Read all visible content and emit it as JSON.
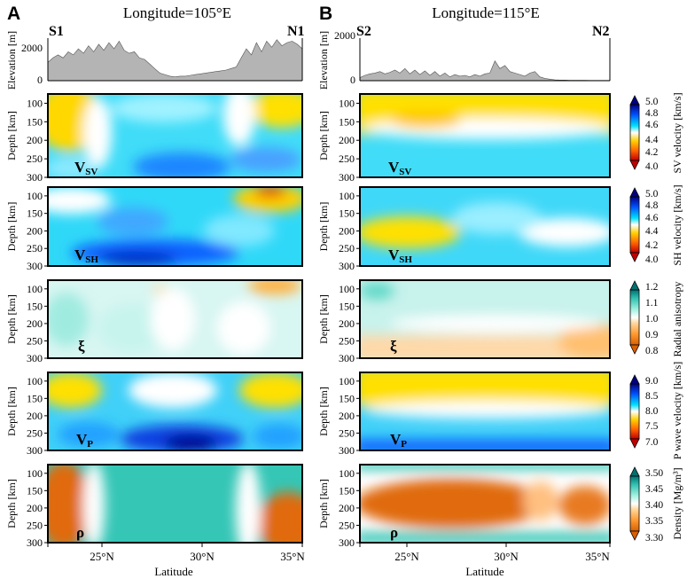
{
  "panels": [
    {
      "letter": "A",
      "title": "Longitude=105°E",
      "start_label": "S1",
      "end_label": "N1",
      "elevation_profile_m": [
        1200,
        1500,
        1700,
        1500,
        1900,
        1700,
        2100,
        1800,
        2300,
        1900,
        2400,
        2000,
        2500,
        2100,
        2600,
        2000,
        1800,
        1900,
        1500,
        1400,
        1100,
        800,
        500,
        400,
        300,
        250,
        300,
        300,
        350,
        400,
        450,
        500,
        550,
        600,
        650,
        700,
        800,
        900,
        1500,
        2100,
        1700,
        2500,
        1900,
        2600,
        2200,
        2700,
        2300,
        2500,
        2600,
        2400,
        2100
      ]
    },
    {
      "letter": "B",
      "title": "Longitude=115°E",
      "start_label": "S2",
      "end_label": "N2",
      "elevation_profile_m": [
        200,
        350,
        450,
        500,
        600,
        450,
        550,
        700,
        500,
        800,
        450,
        700,
        400,
        650,
        350,
        600,
        300,
        500,
        250,
        400,
        300,
        350,
        250,
        400,
        300,
        450,
        500,
        1300,
        800,
        1000,
        600,
        500,
        400,
        300,
        500,
        600,
        250,
        150,
        100,
        50,
        40,
        40,
        30,
        30,
        30,
        30,
        20,
        20,
        20,
        20,
        20
      ]
    }
  ],
  "axes": {
    "elevation_label": "Elevation [m]",
    "elevation_ticks": [
      "0",
      "2000"
    ],
    "elevation_ticks_b": [
      "0",
      "2000"
    ],
    "elevation_extra_tick_a": "2000",
    "depth_label": "Depth [km]",
    "depth_ticks": [
      "100",
      "150",
      "200",
      "250",
      "300"
    ],
    "x_label": "Latitude",
    "x_ticks": [
      "25°N",
      "30°N",
      "35°N"
    ]
  },
  "rows": [
    {
      "name": "vsv",
      "symbol": "V",
      "sub": "SV",
      "colorbar_label": "SV velocity [km/s]",
      "ticks": [
        "5.0",
        "4.8",
        "4.6",
        "4.4",
        "4.2",
        "4.0"
      ]
    },
    {
      "name": "vsh",
      "symbol": "V",
      "sub": "SH",
      "colorbar_label": "SH velocity [km/s]",
      "ticks": [
        "5.0",
        "4.8",
        "4.6",
        "4.4",
        "4.2",
        "4.0"
      ]
    },
    {
      "name": "xi",
      "symbol": "ξ",
      "sub": "",
      "colorbar_label": "Radial anisotropy",
      "ticks": [
        "1.2",
        "1.1",
        "1.0",
        "0.9",
        "0.8"
      ]
    },
    {
      "name": "vp",
      "symbol": "V",
      "sub": "P",
      "colorbar_label": "P wave velocity [km/s]",
      "ticks": [
        "9.0",
        "8.5",
        "8.0",
        "7.5",
        "7.0"
      ]
    },
    {
      "name": "rho",
      "symbol": "ρ",
      "sub": "",
      "colorbar_label": "Density [Mg/m³]",
      "ticks": [
        "3.50",
        "3.45",
        "3.40",
        "3.35",
        "3.30"
      ]
    }
  ],
  "colors": {
    "seismic": [
      "#c00000",
      "#ff6000",
      "#ffd000",
      "#ffffff",
      "#00e0ff",
      "#0050ff",
      "#000080"
    ],
    "diverging": [
      "#d96000",
      "#ff9a30",
      "#ffd9a0",
      "#ffffff",
      "#a0f0e0",
      "#30c0b0",
      "#007070"
    ],
    "terrain_fill": "#b4b4b4"
  }
}
